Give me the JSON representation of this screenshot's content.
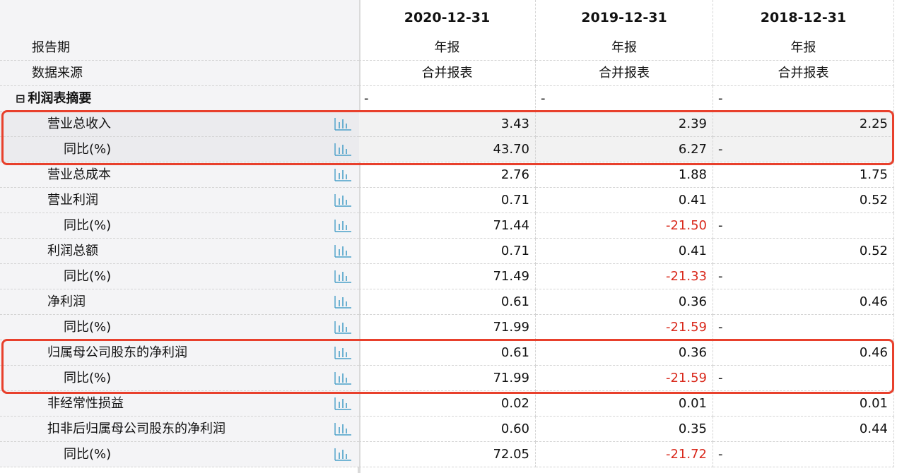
{
  "header": {
    "periods": [
      "2020-12-31",
      "2019-12-31",
      "2018-12-31"
    ]
  },
  "meta_rows": [
    {
      "label": "报告期",
      "values": [
        "年报",
        "年报",
        "年报"
      ]
    },
    {
      "label": "数据来源",
      "values": [
        "合并报表",
        "合并报表",
        "合并报表"
      ]
    }
  ],
  "section": {
    "toggle": "⊟",
    "label": "利润表摘要",
    "values": [
      "-",
      "-",
      "-"
    ]
  },
  "rows": [
    {
      "label": "营业总收入",
      "indent": 1,
      "values": [
        "3.43",
        "2.39",
        "2.25"
      ]
    },
    {
      "label": "同比(%)",
      "indent": 2,
      "values": [
        "43.70",
        "6.27",
        "-"
      ]
    },
    {
      "label": "营业总成本",
      "indent": 1,
      "values": [
        "2.76",
        "1.88",
        "1.75"
      ]
    },
    {
      "label": "营业利润",
      "indent": 1,
      "values": [
        "0.71",
        "0.41",
        "0.52"
      ]
    },
    {
      "label": "同比(%)",
      "indent": 2,
      "values": [
        "71.44",
        "-21.50",
        "-"
      ]
    },
    {
      "label": "利润总额",
      "indent": 1,
      "values": [
        "0.71",
        "0.41",
        "0.52"
      ]
    },
    {
      "label": "同比(%)",
      "indent": 2,
      "values": [
        "71.49",
        "-21.33",
        "-"
      ]
    },
    {
      "label": "净利润",
      "indent": 1,
      "values": [
        "0.61",
        "0.36",
        "0.46"
      ]
    },
    {
      "label": "同比(%)",
      "indent": 2,
      "values": [
        "71.99",
        "-21.59",
        "-"
      ]
    },
    {
      "label": "归属母公司股东的净利润",
      "indent": 1,
      "values": [
        "0.61",
        "0.36",
        "0.46"
      ]
    },
    {
      "label": "同比(%)",
      "indent": 2,
      "values": [
        "71.99",
        "-21.59",
        "-"
      ]
    },
    {
      "label": "非经常性损益",
      "indent": 1,
      "values": [
        "0.02",
        "0.01",
        "0.01"
      ]
    },
    {
      "label": "扣非后归属母公司股东的净利润",
      "indent": 1,
      "values": [
        "0.60",
        "0.35",
        "0.44"
      ]
    },
    {
      "label": "同比(%)",
      "indent": 2,
      "values": [
        "72.05",
        "-21.72",
        "-"
      ]
    }
  ],
  "icons": {
    "row_chart": "bar-chart-icon"
  },
  "colors": {
    "negative": "#d9291c",
    "highlight_border": "#e8402c",
    "chart_icon": "#4aa0c8"
  }
}
